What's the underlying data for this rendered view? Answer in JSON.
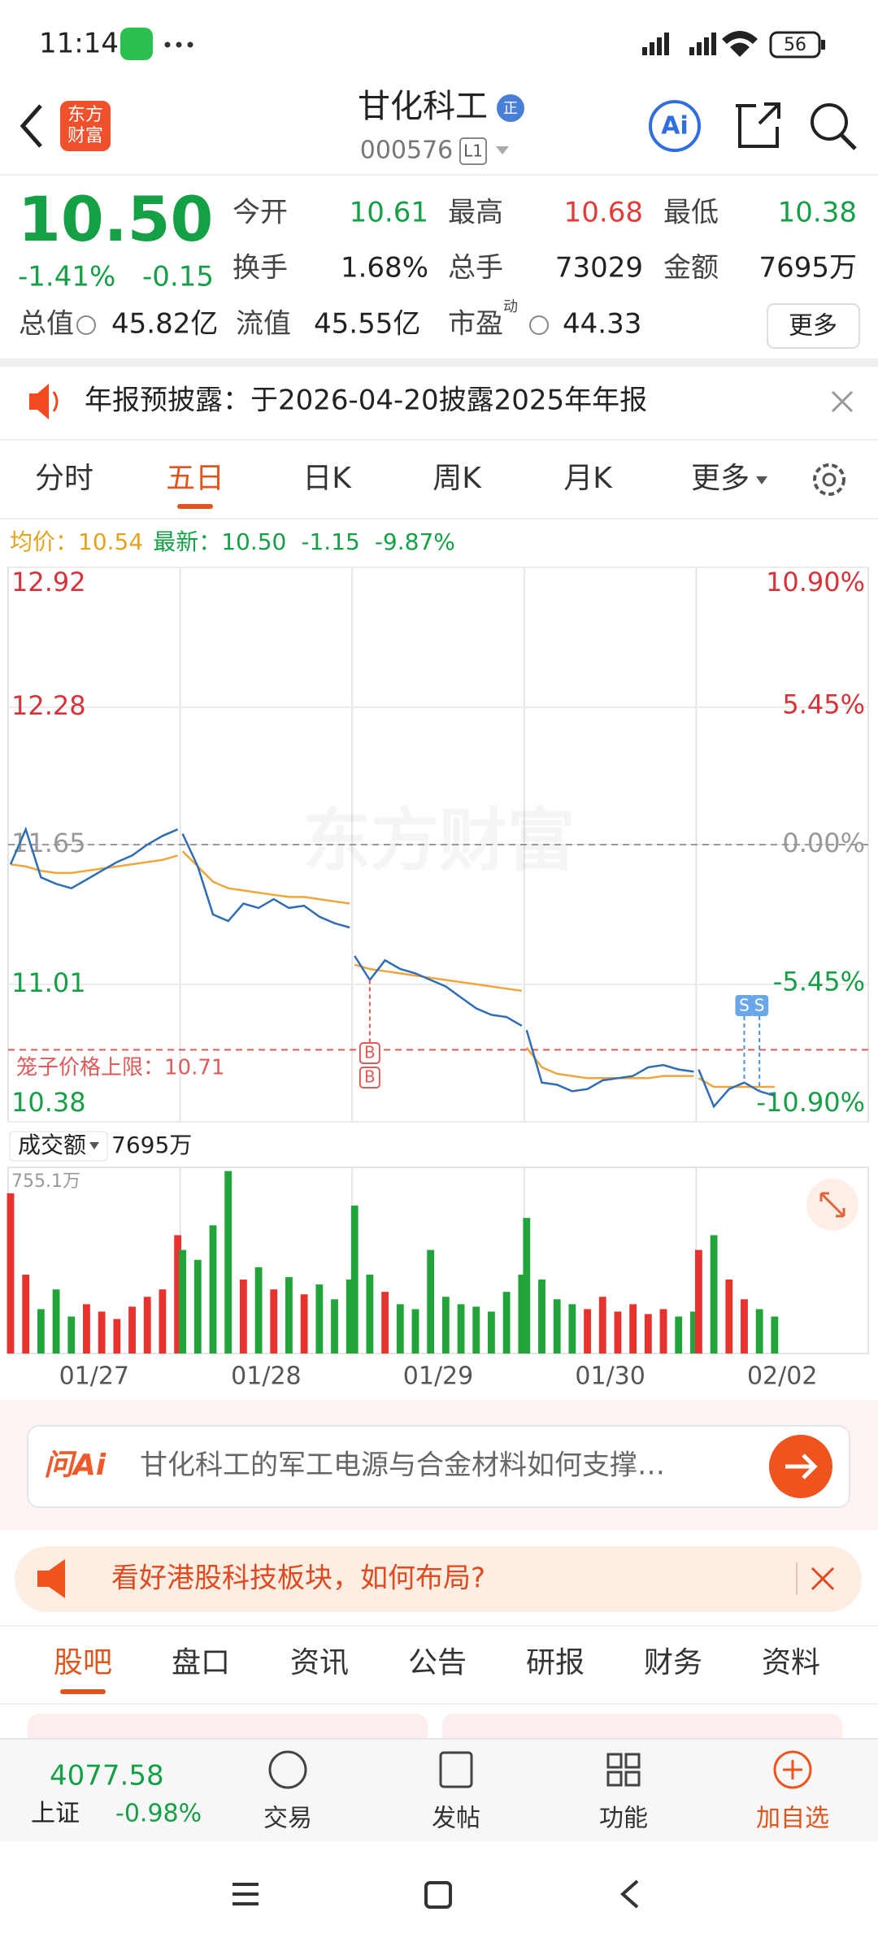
{
  "status_bar": {
    "time": "11:14",
    "battery": "56"
  },
  "header": {
    "logo": [
      "东方",
      "财富"
    ],
    "title": "甘化科工",
    "badge": "正",
    "code": "000576",
    "level": "L1",
    "ai": "Ai"
  },
  "quote": {
    "price": "10.50",
    "change_pct": "-1.41%",
    "change": "-0.15",
    "fields": [
      {
        "label": "今开",
        "value": "10.61",
        "color": "#16a046"
      },
      {
        "label": "最高",
        "value": "10.68",
        "color": "#e23c39"
      },
      {
        "label": "最低",
        "value": "10.38",
        "color": "#16a046"
      },
      {
        "label": "换手",
        "value": "1.68%",
        "color": "#222222"
      },
      {
        "label": "总手",
        "value": "73029",
        "color": "#222222"
      },
      {
        "label": "金额",
        "value": "7695万",
        "color": "#222222"
      },
      {
        "label": "总值",
        "value": "45.82亿",
        "color": "#222222"
      },
      {
        "label": "流值",
        "value": "45.55亿",
        "color": "#222222"
      },
      {
        "label": "市盈",
        "sup": "动",
        "value": "44.33",
        "color": "#222222"
      }
    ],
    "more": "更多"
  },
  "notice": "年报预披露：于2026-04-20披露2025年年报",
  "chart_tabs": {
    "items": [
      "分时",
      "五日",
      "日K",
      "周K",
      "月K",
      "更多"
    ],
    "active": 1
  },
  "info": {
    "avg_label": "均价：",
    "avg": "10.54",
    "last_label": "最新：",
    "last": "10.50",
    "change": "-1.15",
    "change_pct": "-9.87%"
  },
  "chart_data": [
    {
      "type": "line",
      "watermark": "东方财富",
      "categories": [
        "01/27",
        "01/28",
        "01/29",
        "01/30",
        "02/02"
      ],
      "series": [
        {
          "color": "#2f6db5",
          "values": [
            [
              11.56,
              11.72,
              11.5,
              11.47,
              11.45,
              11.49,
              11.53,
              11.57,
              11.6,
              11.65,
              11.69,
              11.72
            ],
            [
              11.7,
              11.55,
              11.33,
              11.3,
              11.38,
              11.36,
              11.4,
              11.36,
              11.37,
              11.32,
              11.29,
              11.27
            ],
            [
              11.14,
              11.03,
              11.12,
              11.08,
              11.06,
              11.03,
              11.0,
              10.95,
              10.9,
              10.87,
              10.86,
              10.82
            ],
            [
              10.8,
              10.56,
              10.55,
              10.52,
              10.53,
              10.57,
              10.58,
              10.59,
              10.63,
              10.64,
              10.62,
              10.61
            ],
            [
              10.62,
              10.45,
              10.53,
              10.56,
              10.52,
              10.5
            ]
          ]
        },
        {
          "color": "#f0a53c",
          "values": [
            [
              11.56,
              11.55,
              11.53,
              11.52,
              11.52,
              11.53,
              11.54,
              11.55,
              11.56,
              11.57,
              11.58,
              11.6
            ],
            [
              11.62,
              11.55,
              11.48,
              11.45,
              11.44,
              11.43,
              11.42,
              11.41,
              11.41,
              11.4,
              11.39,
              11.38
            ],
            [
              11.1,
              11.08,
              11.07,
              11.06,
              11.05,
              11.04,
              11.03,
              11.02,
              11.01,
              11.0,
              10.99,
              10.98
            ],
            [
              10.72,
              10.63,
              10.6,
              10.59,
              10.58,
              10.58,
              10.58,
              10.58,
              10.58,
              10.59,
              10.59,
              10.59
            ],
            [
              10.58,
              10.54,
              10.54,
              10.54,
              10.54,
              10.54
            ]
          ]
        }
      ],
      "ylim": [
        10.38,
        12.92
      ],
      "yticks": [
        12.92,
        12.28,
        11.65,
        11.01,
        10.38
      ],
      "y2lim": [
        -10.9,
        10.9
      ],
      "y2ticks": [
        {
          "value": 10.9,
          "label": "10.90%"
        },
        {
          "value": 5.45,
          "label": "5.45%"
        },
        {
          "value": 0,
          "label": "0.00%"
        },
        {
          "value": -5.45,
          "label": "-5.45%"
        },
        {
          "value": -10.9,
          "label": "-10.90%"
        }
      ],
      "reference_line": {
        "label": "笼子价格上限：",
        "value": 10.71,
        "color": "#e05a5a"
      },
      "trade_marks": [
        "B",
        "S"
      ]
    },
    {
      "type": "bar",
      "label": "成交额",
      "total": "7695万",
      "up_color": "#e8322d",
      "down_color": "#21a53a",
      "categories": [
        "01/27",
        "01/28",
        "01/29",
        "01/30",
        "02/02"
      ],
      "series": [
        {
          "values": [
            [
              650,
              320,
              180,
              260,
              150,
              200,
              170,
              140,
              190,
              230,
              260,
              480
            ],
            [
              420,
              380,
              520,
              740,
              300,
              350,
              260,
              310,
              240,
              280,
              220,
              300
            ],
            [
              600,
              320,
              250,
              200,
              180,
              420,
              230,
              200,
              190,
              170,
              250,
              320
            ],
            [
              550,
              300,
              220,
              200,
              180,
              230,
              170,
              200,
              160,
              180,
              150,
              170
            ],
            [
              420,
              480,
              300,
              220,
              180,
              150
            ]
          ]
        }
      ],
      "ylim": [
        0,
        755.1
      ],
      "yticks": [
        {
          "value": 755.1,
          "label": "755.1万"
        }
      ]
    }
  ],
  "ai_prompt": {
    "logo": "问Ai",
    "text": "甘化科工的军工电源与合金材料如何支撑…"
  },
  "banner": "看好港股科技板块，如何布局?",
  "content_tabs": {
    "items": [
      "股吧",
      "盘口",
      "资讯",
      "公告",
      "研报",
      "财务",
      "资料"
    ],
    "active": 0
  },
  "bottom_bar": {
    "index_value": "4077.58",
    "index_name": "上证",
    "index_change": "-0.98%",
    "items": [
      "交易",
      "发帖",
      "功能",
      "加自选"
    ]
  }
}
